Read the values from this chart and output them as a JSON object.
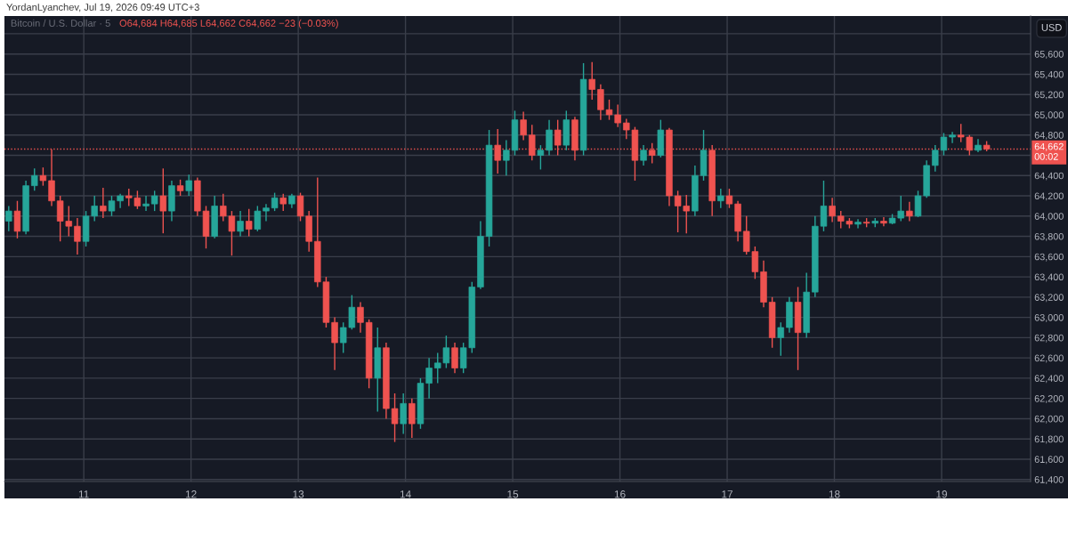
{
  "chart_data": {
    "type": "candlestick",
    "title": "YordanLyanchev, Jul 19, 2026 09:49 UTC+3",
    "subtitle": "Bitcoin / U.S. Dollar · 5",
    "annotations": [
      "O64,684 H64,685 L64,662 C64,662 −23 (−0.03%)"
    ],
    "ylabel": "USD",
    "x": [
      10.3,
      10.38,
      10.46,
      10.54,
      10.62,
      10.7,
      10.78,
      10.86,
      10.94,
      11.02,
      11.1,
      11.18,
      11.26,
      11.34,
      11.42,
      11.5,
      11.58,
      11.66,
      11.74,
      11.82,
      11.9,
      11.98,
      12.06,
      12.14,
      12.22,
      12.3,
      12.38,
      12.46,
      12.54,
      12.62,
      12.7,
      12.78,
      12.86,
      12.94,
      13.02,
      13.1,
      13.18,
      13.26,
      13.34,
      13.42,
      13.5,
      13.58,
      13.66,
      13.74,
      13.82,
      13.9,
      13.98,
      14.06,
      14.14,
      14.22,
      14.3,
      14.38,
      14.46,
      14.54,
      14.62,
      14.7,
      14.78,
      14.86,
      14.94,
      15.02,
      15.1,
      15.18,
      15.26,
      15.34,
      15.42,
      15.5,
      15.58,
      15.66,
      15.74,
      15.82,
      15.9,
      15.98,
      16.06,
      16.14,
      16.22,
      16.3,
      16.38,
      16.46,
      16.54,
      16.62,
      16.7,
      16.78,
      16.86,
      16.94,
      17.02,
      17.1,
      17.18,
      17.26,
      17.34,
      17.42,
      17.5,
      17.58,
      17.66,
      17.74,
      17.82,
      17.9,
      17.98,
      18.06,
      18.14,
      18.22,
      18.3,
      18.38,
      18.46,
      18.54,
      18.62,
      18.7,
      18.78,
      18.86,
      18.94,
      19.02,
      19.1,
      19.18,
      19.26,
      19.34,
      19.42
    ],
    "ohlc": [
      [
        63950,
        64100,
        63850,
        64050
      ],
      [
        64050,
        64150,
        63780,
        63850
      ],
      [
        63850,
        64350,
        63820,
        64300
      ],
      [
        64300,
        64470,
        64250,
        64400
      ],
      [
        64400,
        64480,
        64300,
        64350
      ],
      [
        64350,
        64660,
        64100,
        64150
      ],
      [
        64150,
        64200,
        63750,
        63950
      ],
      [
        63950,
        64100,
        63800,
        63900
      ],
      [
        63900,
        63980,
        63620,
        63750
      ],
      [
        63750,
        64050,
        63700,
        64000
      ],
      [
        64000,
        64200,
        63950,
        64100
      ],
      [
        64100,
        64280,
        63980,
        64050
      ],
      [
        64050,
        64200,
        64000,
        64150
      ],
      [
        64150,
        64220,
        64080,
        64200
      ],
      [
        64200,
        64270,
        64100,
        64180
      ],
      [
        64180,
        64250,
        64070,
        64100
      ],
      [
        64100,
        64200,
        64050,
        64120
      ],
      [
        64120,
        64250,
        64050,
        64200
      ],
      [
        64200,
        64470,
        63830,
        64050
      ],
      [
        64050,
        64350,
        63950,
        64300
      ],
      [
        64300,
        64360,
        64200,
        64250
      ],
      [
        64250,
        64410,
        64200,
        64350
      ],
      [
        64350,
        64380,
        64000,
        64050
      ],
      [
        64050,
        64100,
        63680,
        63800
      ],
      [
        63800,
        64200,
        63780,
        64100
      ],
      [
        64100,
        64220,
        63950,
        64000
      ],
      [
        64000,
        64050,
        63610,
        63850
      ],
      [
        63850,
        64050,
        63800,
        63950
      ],
      [
        63950,
        64070,
        63800,
        63870
      ],
      [
        63870,
        64100,
        63850,
        64050
      ],
      [
        64050,
        64120,
        63950,
        64080
      ],
      [
        64080,
        64230,
        64050,
        64180
      ],
      [
        64180,
        64220,
        64050,
        64120
      ],
      [
        64120,
        64220,
        64080,
        64200
      ],
      [
        64200,
        64230,
        63950,
        64000
      ],
      [
        64000,
        64050,
        63650,
        63750
      ],
      [
        63750,
        64380,
        63300,
        63350
      ],
      [
        63350,
        63400,
        62900,
        62950
      ],
      [
        62950,
        63000,
        62480,
        62750
      ],
      [
        62750,
        62950,
        62650,
        62900
      ],
      [
        62900,
        63220,
        62880,
        63100
      ],
      [
        63100,
        63150,
        62850,
        62950
      ],
      [
        62950,
        62980,
        62300,
        62400
      ],
      [
        62400,
        62900,
        62070,
        62700
      ],
      [
        62700,
        62750,
        62000,
        62100
      ],
      [
        62100,
        62250,
        61770,
        61950
      ],
      [
        61950,
        62250,
        61850,
        62150
      ],
      [
        62150,
        62200,
        61810,
        61950
      ],
      [
        61950,
        62400,
        61900,
        62350
      ],
      [
        62350,
        62600,
        62200,
        62500
      ],
      [
        62500,
        62650,
        62350,
        62550
      ],
      [
        62550,
        62820,
        62500,
        62700
      ],
      [
        62700,
        62750,
        62450,
        62500
      ],
      [
        62500,
        62750,
        62450,
        62700
      ],
      [
        62700,
        63350,
        62650,
        63300
      ],
      [
        63300,
        63950,
        63280,
        63800
      ],
      [
        63800,
        64850,
        63700,
        64700
      ],
      [
        64700,
        64860,
        64420,
        64550
      ],
      [
        64550,
        64750,
        64400,
        64650
      ],
      [
        64650,
        65040,
        64600,
        64950
      ],
      [
        64950,
        65030,
        64750,
        64800
      ],
      [
        64800,
        64900,
        64550,
        64600
      ],
      [
        64600,
        64700,
        64460,
        64650
      ],
      [
        64650,
        64950,
        64600,
        64850
      ],
      [
        64850,
        64950,
        64600,
        64700
      ],
      [
        64700,
        65040,
        64650,
        64950
      ],
      [
        64950,
        64980,
        64550,
        64650
      ],
      [
        64650,
        65510,
        64600,
        65350
      ],
      [
        65350,
        65520,
        65150,
        65250
      ],
      [
        65250,
        65300,
        64950,
        65050
      ],
      [
        65050,
        65150,
        64950,
        65000
      ],
      [
        65000,
        65100,
        64880,
        64920
      ],
      [
        64920,
        64960,
        64760,
        64850
      ],
      [
        64850,
        64880,
        64350,
        64550
      ],
      [
        64550,
        64700,
        64500,
        64650
      ],
      [
        64650,
        64720,
        64520,
        64600
      ],
      [
        64600,
        64950,
        64580,
        64850
      ],
      [
        64850,
        64870,
        64100,
        64200
      ],
      [
        64200,
        64250,
        63840,
        64100
      ],
      [
        64100,
        64210,
        63830,
        64050
      ],
      [
        64050,
        64500,
        64000,
        64400
      ],
      [
        64400,
        64850,
        64350,
        64650
      ],
      [
        64650,
        64700,
        64000,
        64150
      ],
      [
        64150,
        64270,
        64080,
        64200
      ],
      [
        64200,
        64270,
        64080,
        64120
      ],
      [
        64120,
        64150,
        63750,
        63850
      ],
      [
        63850,
        64000,
        63620,
        63650
      ],
      [
        63650,
        63700,
        63380,
        63450
      ],
      [
        63450,
        63560,
        63100,
        63150
      ],
      [
        63150,
        63200,
        62700,
        62800
      ],
      [
        62800,
        62950,
        62620,
        62900
      ],
      [
        62900,
        63200,
        62850,
        63150
      ],
      [
        63150,
        63300,
        62480,
        62850
      ],
      [
        62850,
        63440,
        62800,
        63250
      ],
      [
        63250,
        64000,
        63200,
        63900
      ],
      [
        63900,
        64350,
        63850,
        64100
      ],
      [
        64100,
        64180,
        63940,
        64000
      ],
      [
        64000,
        64050,
        63880,
        63950
      ],
      [
        63950,
        63980,
        63880,
        63920
      ],
      [
        63920,
        63970,
        63880,
        63940
      ],
      [
        63940,
        63980,
        63890,
        63930
      ],
      [
        63930,
        63980,
        63890,
        63950
      ],
      [
        63950,
        63990,
        63900,
        63930
      ],
      [
        63930,
        64020,
        63920,
        63980
      ],
      [
        63980,
        64200,
        63950,
        64050
      ],
      [
        64050,
        64140,
        63950,
        64000
      ],
      [
        64000,
        64250,
        63990,
        64200
      ],
      [
        64200,
        64550,
        64180,
        64500
      ],
      [
        64500,
        64700,
        64440,
        64650
      ],
      [
        64650,
        64820,
        64600,
        64780
      ],
      [
        64780,
        64830,
        64720,
        64800
      ],
      [
        64800,
        64910,
        64730,
        64780
      ],
      [
        64780,
        64800,
        64600,
        64650
      ],
      [
        64650,
        64760,
        64630,
        64700
      ],
      [
        64700,
        64740,
        64640,
        64662
      ]
    ],
    "colors": [
      "#26a69a",
      "#ef5350",
      "#26a69a",
      "#26a69a",
      "#ef5350",
      "#ef5350",
      "#ef5350",
      "#ef5350",
      "#ef5350",
      "#26a69a",
      "#26a69a",
      "#ef5350",
      "#26a69a",
      "#26a69a",
      "#ef5350",
      "#ef5350",
      "#26a69a",
      "#26a69a",
      "#ef5350",
      "#26a69a",
      "#ef5350",
      "#26a69a",
      "#ef5350",
      "#ef5350",
      "#26a69a",
      "#ef5350",
      "#ef5350",
      "#26a69a",
      "#ef5350",
      "#26a69a",
      "#26a69a",
      "#26a69a",
      "#ef5350",
      "#26a69a",
      "#ef5350",
      "#ef5350",
      "#ef5350",
      "#ef5350",
      "#ef5350",
      "#26a69a",
      "#26a69a",
      "#ef5350",
      "#ef5350",
      "#26a69a",
      "#ef5350",
      "#ef5350",
      "#26a69a",
      "#ef5350",
      "#26a69a",
      "#26a69a",
      "#26a69a",
      "#26a69a",
      "#ef5350",
      "#26a69a",
      "#26a69a",
      "#26a69a",
      "#26a69a",
      "#ef5350",
      "#26a69a",
      "#26a69a",
      "#ef5350",
      "#ef5350",
      "#26a69a",
      "#26a69a",
      "#ef5350",
      "#26a69a",
      "#ef5350",
      "#26a69a",
      "#ef5350",
      "#ef5350",
      "#ef5350",
      "#ef5350",
      "#ef5350",
      "#ef5350",
      "#26a69a",
      "#ef5350",
      "#26a69a",
      "#ef5350",
      "#ef5350",
      "#ef5350",
      "#26a69a",
      "#26a69a",
      "#ef5350",
      "#26a69a",
      "#ef5350",
      "#ef5350",
      "#ef5350",
      "#ef5350",
      "#ef5350",
      "#ef5350",
      "#26a69a",
      "#26a69a",
      "#ef5350",
      "#26a69a",
      "#26a69a",
      "#26a69a",
      "#ef5350",
      "#ef5350",
      "#ef5350",
      "#26a69a",
      "#ef5350",
      "#26a69a",
      "#ef5350",
      "#26a69a",
      "#26a69a",
      "#ef5350",
      "#26a69a",
      "#26a69a",
      "#26a69a",
      "#26a69a",
      "#26a69a",
      "#ef5350",
      "#ef5350",
      "#26a69a",
      "#ef5350"
    ],
    "xlim": [
      10.26,
      19.83
    ],
    "xticks": [
      11,
      12,
      13,
      14,
      15,
      16,
      17,
      18,
      19
    ],
    "ylim": [
      61380,
      65975
    ],
    "yticks": [
      {
        "value": 61400,
        "label": "61,400"
      },
      {
        "value": 61600,
        "label": "61,600"
      },
      {
        "value": 61800,
        "label": "61,800"
      },
      {
        "value": 62000,
        "label": "62,000"
      },
      {
        "value": 62200,
        "label": "62,200"
      },
      {
        "value": 62400,
        "label": "62,400"
      },
      {
        "value": 62600,
        "label": "62,600"
      },
      {
        "value": 62800,
        "label": "62,800"
      },
      {
        "value": 63000,
        "label": "63,000"
      },
      {
        "value": 63200,
        "label": "63,200"
      },
      {
        "value": 63400,
        "label": "63,400"
      },
      {
        "value": 63600,
        "label": "63,600"
      },
      {
        "value": 63800,
        "label": "63,800"
      },
      {
        "value": 64000,
        "label": "64,000"
      },
      {
        "value": 64200,
        "label": "64,200"
      },
      {
        "value": 64400,
        "label": "64,400"
      },
      {
        "value": 64600,
        "label": null
      },
      {
        "value": 64800,
        "label": "64,800"
      },
      {
        "value": 65000,
        "label": "65,000"
      },
      {
        "value": 65200,
        "label": "65,200"
      },
      {
        "value": 65400,
        "label": "65,400"
      },
      {
        "value": 65600,
        "label": "65,600"
      },
      {
        "value": 65800,
        "label": null
      }
    ],
    "grid": true,
    "ref_lines": [
      {
        "axis": "y",
        "value": 64662,
        "label": "64,662\n00:02",
        "color": "#ef5350",
        "line_style": "dotted"
      }
    ]
  }
}
